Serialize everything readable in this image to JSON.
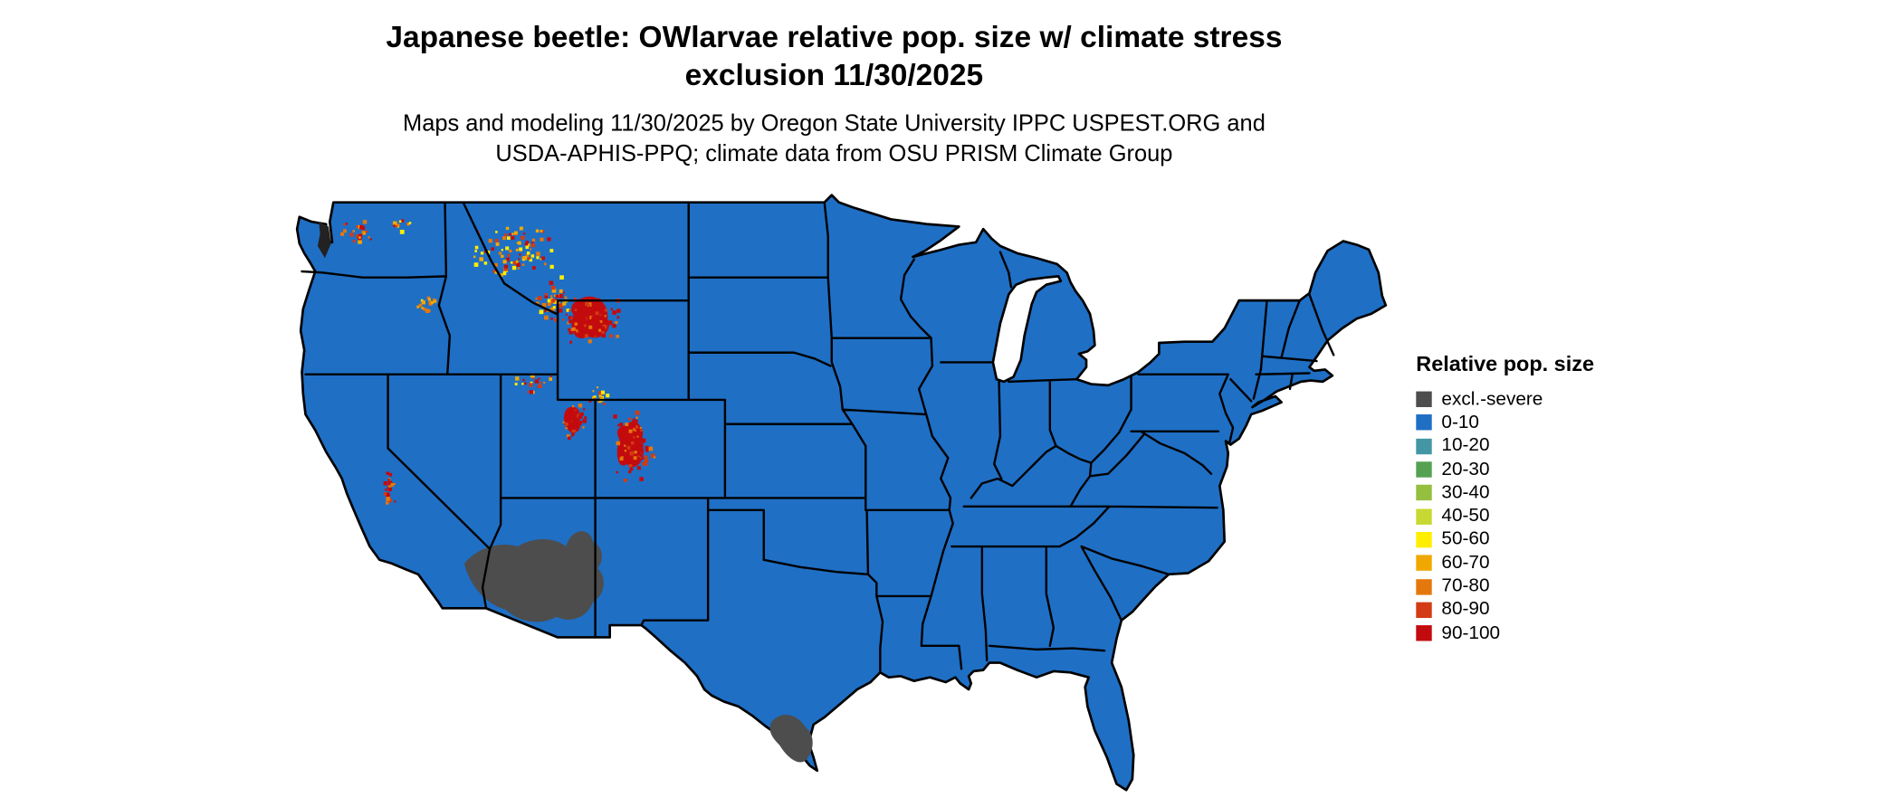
{
  "title": {
    "line1": "Japanese beetle: OWlarvae relative pop. size w/ climate stress",
    "line2": "exclusion 11/30/2025"
  },
  "subtitle": {
    "line1": "Maps and modeling 11/30/2025 by Oregon State University IPPC USPEST.ORG and",
    "line2": "USDA-APHIS-PPQ; climate data from OSU PRISM Climate Group"
  },
  "legend": {
    "title": "Relative pop. size",
    "items": [
      {
        "label": "excl.-severe",
        "color": "#4d4d4d"
      },
      {
        "label": "0-10",
        "color": "#1f6fc5"
      },
      {
        "label": "10-20",
        "color": "#4596a5"
      },
      {
        "label": "20-30",
        "color": "#55a154"
      },
      {
        "label": "30-40",
        "color": "#94bf3f"
      },
      {
        "label": "40-50",
        "color": "#c8d832"
      },
      {
        "label": "50-60",
        "color": "#ffee00"
      },
      {
        "label": "60-70",
        "color": "#f0a800"
      },
      {
        "label": "70-80",
        "color": "#e5780c"
      },
      {
        "label": "80-90",
        "color": "#d23b14"
      },
      {
        "label": "90-100",
        "color": "#c30b0e"
      }
    ]
  },
  "map": {
    "base_fill_label": "0-10",
    "base_fill_color": "#1f6fc5",
    "border_color": "#000000",
    "excluded_regions": [
      "southern Arizona / southeastern California",
      "south Texas",
      "Puget Sound area"
    ],
    "hotspot_regions": [
      "Idaho panhandle / western Montana",
      "Yellowstone / Bighorn Wyoming",
      "Wasatch Utah",
      "Colorado Rockies",
      "California Sierra",
      "Washington Cascades",
      "northeast Oregon"
    ]
  }
}
